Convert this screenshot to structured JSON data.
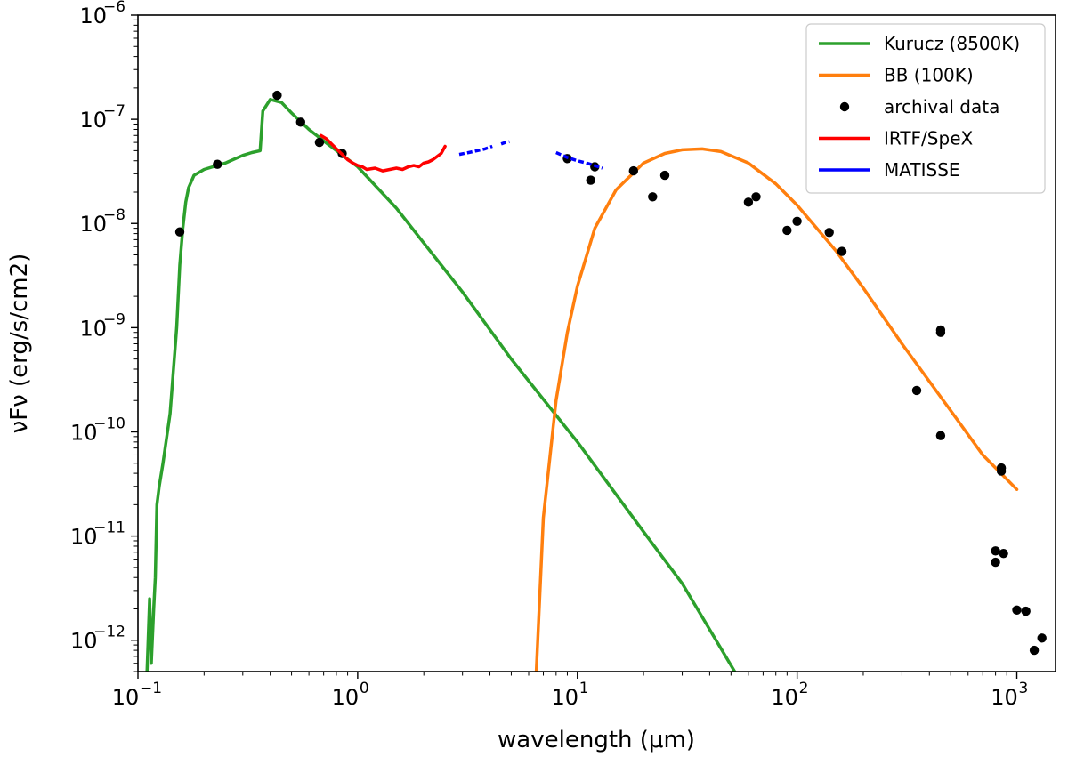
{
  "chart_data": {
    "type": "line",
    "title": "",
    "xlabel": "wavelength (μm)",
    "ylabel": "νFν (erg/s/cm2)",
    "xscale": "log",
    "yscale": "log",
    "xlim": [
      0.1,
      1500
    ],
    "ylim": [
      5e-13,
      1e-06
    ],
    "x_ticks": [
      {
        "value": 0.1,
        "base": "10",
        "exp": "−1"
      },
      {
        "value": 1,
        "base": "10",
        "exp": "0"
      },
      {
        "value": 10,
        "base": "10",
        "exp": "1"
      },
      {
        "value": 100,
        "base": "10",
        "exp": "2"
      },
      {
        "value": 1000,
        "base": "10",
        "exp": "3"
      }
    ],
    "y_ticks": [
      {
        "value": 1e-12,
        "base": "10",
        "exp": "−12"
      },
      {
        "value": 1e-11,
        "base": "10",
        "exp": "−11"
      },
      {
        "value": 1e-10,
        "base": "10",
        "exp": "−10"
      },
      {
        "value": 1e-09,
        "base": "10",
        "exp": "−9"
      },
      {
        "value": 1e-08,
        "base": "10",
        "exp": "−8"
      },
      {
        "value": 1e-07,
        "base": "10",
        "exp": "−7"
      },
      {
        "value": 1e-06,
        "base": "10",
        "exp": "−6"
      }
    ],
    "grid": false,
    "legend_position": "top-right",
    "series": [
      {
        "name": "Kurucz (8500K)",
        "kind": "line",
        "color": "#2ca02c",
        "x": [
          0.11,
          0.113,
          0.115,
          0.118,
          0.12,
          0.122,
          0.125,
          0.13,
          0.14,
          0.15,
          0.155,
          0.16,
          0.165,
          0.17,
          0.18,
          0.2,
          0.25,
          0.3,
          0.33,
          0.36,
          0.37,
          0.4,
          0.45,
          0.5,
          0.6,
          0.7,
          0.8,
          1.0,
          1.5,
          2,
          3,
          5,
          10,
          20,
          30,
          52
        ],
        "y": [
          5e-13,
          2.5e-12,
          6e-13,
          2e-12,
          4e-12,
          2e-11,
          3e-11,
          5e-11,
          1.5e-10,
          1e-09,
          4e-09,
          9e-09,
          1.6e-08,
          2.2e-08,
          2.9e-08,
          3.3e-08,
          3.8e-08,
          4.5e-08,
          4.8e-08,
          5e-08,
          1.2e-07,
          1.55e-07,
          1.45e-07,
          1.15e-07,
          8e-08,
          6.2e-08,
          5e-08,
          3.5e-08,
          1.4e-08,
          6.5e-09,
          2.2e-09,
          5e-10,
          8e-11,
          1.1e-11,
          3.5e-12,
          5e-13
        ]
      },
      {
        "name": "BB (100K)",
        "kind": "line",
        "color": "#ff7f0e",
        "x": [
          6.5,
          7,
          8,
          9,
          10,
          12,
          15,
          20,
          25,
          30,
          37,
          45,
          60,
          80,
          100,
          150,
          200,
          300,
          500,
          700,
          1000
        ],
        "y": [
          5e-13,
          1.5e-11,
          2e-10,
          9e-10,
          2.5e-09,
          9e-09,
          2.1e-08,
          3.8e-08,
          4.7e-08,
          5.1e-08,
          5.2e-08,
          4.9e-08,
          3.8e-08,
          2.4e-08,
          1.5e-08,
          5.5e-09,
          2.4e-09,
          7e-10,
          1.6e-10,
          6e-11,
          2.8e-11
        ]
      },
      {
        "name": "archival data",
        "kind": "scatter",
        "color": "#000000",
        "x": [
          0.155,
          0.23,
          0.43,
          0.55,
          0.67,
          0.85,
          9.0,
          11.5,
          12.0,
          18.0,
          22.0,
          25.0,
          60.0,
          65.0,
          90.0,
          100.0,
          140.0,
          160.0,
          450.0,
          450.0,
          350.0,
          450.0,
          850.0,
          850.0,
          800.0,
          800.0,
          870.0,
          1000.0,
          1100.0,
          1200.0,
          1300.0
        ],
        "y": [
          8.3e-09,
          3.7e-08,
          1.7e-07,
          9.4e-08,
          6e-08,
          4.7e-08,
          4.2e-08,
          2.6e-08,
          3.5e-08,
          3.2e-08,
          1.8e-08,
          2.9e-08,
          1.6e-08,
          1.8e-08,
          8.6e-09,
          1.05e-08,
          8.2e-09,
          5.4e-09,
          9.5e-10,
          9e-10,
          2.5e-10,
          9.2e-11,
          4.5e-11,
          4.2e-11,
          7.2e-12,
          5.6e-12,
          6.8e-12,
          1.95e-12,
          1.9e-12,
          8e-13,
          1.05e-12
        ]
      },
      {
        "name": "IRTF/SpeX",
        "kind": "line",
        "color": "#ff0000",
        "x": [
          0.68,
          0.72,
          0.76,
          0.8,
          0.85,
          0.9,
          0.95,
          1.0,
          1.05,
          1.1,
          1.2,
          1.3,
          1.4,
          1.5,
          1.6,
          1.7,
          1.8,
          1.9,
          2.0,
          2.1,
          2.2,
          2.3,
          2.4,
          2.5
        ],
        "y": [
          7e-08,
          6.5e-08,
          5.8e-08,
          5.2e-08,
          4.6e-08,
          4.1e-08,
          3.8e-08,
          3.6e-08,
          3.5e-08,
          3.3e-08,
          3.4e-08,
          3.2e-08,
          3.3e-08,
          3.4e-08,
          3.3e-08,
          3.5e-08,
          3.6e-08,
          3.5e-08,
          3.8e-08,
          3.9e-08,
          4.1e-08,
          4.4e-08,
          4.7e-08,
          5.5e-08
        ]
      },
      {
        "name": "MATISSE",
        "kind": "line",
        "color": "#0000ff",
        "segments": [
          {
            "x": [
              2.9,
              3.2,
              3.5,
              3.8,
              4.1
            ],
            "y": [
              4.6e-08,
              4.8e-08,
              5e-08,
              5.2e-08,
              5.5e-08
            ]
          },
          {
            "x": [
              4.5,
              4.7,
              4.9
            ],
            "y": [
              5.8e-08,
              6e-08,
              6.1e-08
            ]
          },
          {
            "x": [
              8.0,
              9.0,
              10.0,
              11.0,
              12.0,
              13.0
            ],
            "y": [
              4.8e-08,
              4.3e-08,
              4e-08,
              3.8e-08,
              3.6e-08,
              3.4e-08
            ]
          }
        ]
      }
    ]
  }
}
